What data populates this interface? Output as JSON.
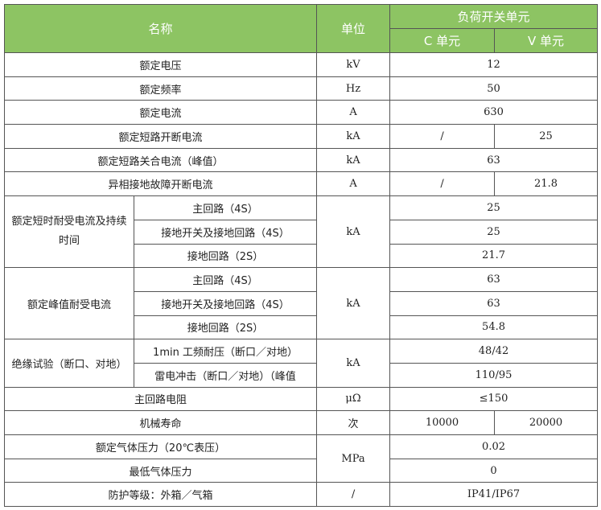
{
  "header": {
    "name": "名称",
    "unit": "单位",
    "group": "负荷开关单元",
    "c_unit": "C 单元",
    "v_unit": "V 单元"
  },
  "rows": [
    {
      "name": "额定电压",
      "unit": "kV",
      "value": "12"
    },
    {
      "name": "额定频率",
      "unit": "Hz",
      "value": "50"
    },
    {
      "name": "额定电流",
      "unit": "A",
      "value": "630"
    },
    {
      "name": "额定短路开断电流",
      "unit": "kA",
      "c": "/",
      "v": "25"
    },
    {
      "name": "额定短路关合电流（峰值）",
      "unit": "kA",
      "value": "63"
    },
    {
      "name": "异相接地故障开断电流",
      "unit": "A",
      "c": "/",
      "v": "21.8"
    }
  ],
  "short_time": {
    "name": "额定短时耐受电流及持续时间",
    "unit": "kA",
    "items": [
      {
        "label": "主回路（4S）",
        "value": "25"
      },
      {
        "label": "接地开关及接地回路（4S）",
        "value": "25"
      },
      {
        "label": "接地回路（2S）",
        "value": "21.7"
      }
    ]
  },
  "peak": {
    "name": "额定峰值耐受电流",
    "unit": "kA",
    "items": [
      {
        "label": "主回路（4S）",
        "value": "63"
      },
      {
        "label": "接地开关及接地回路（4S）",
        "value": "63"
      },
      {
        "label": "接地回路（2S）",
        "value": "54.8"
      }
    ]
  },
  "insulation": {
    "name": "绝缘试验（断口、对地）",
    "unit": "kA",
    "items": [
      {
        "label": "1min 工频耐压（断口／对地）",
        "value": "48/42"
      },
      {
        "label": "雷电冲击（断口／对地）（峰值",
        "value": "110/95"
      }
    ]
  },
  "resistance": {
    "name": "主回路电阻",
    "unit": "μΩ",
    "value": "≤150"
  },
  "life": {
    "name": "机械寿命",
    "unit": "次",
    "c": "10000",
    "v": "20000"
  },
  "gas": {
    "unit": "MPa",
    "items": [
      {
        "label": "额定气体压力（20℃表压）",
        "value": "0.02"
      },
      {
        "label": "最低气体压力",
        "value": "0"
      }
    ]
  },
  "protection": {
    "name": "防护等级：外箱／气箱",
    "unit": "/",
    "value": "IP41/IP67"
  },
  "colors": {
    "header_bg": "#8dc463",
    "header_text": "#ffffff",
    "border": "#555555"
  }
}
